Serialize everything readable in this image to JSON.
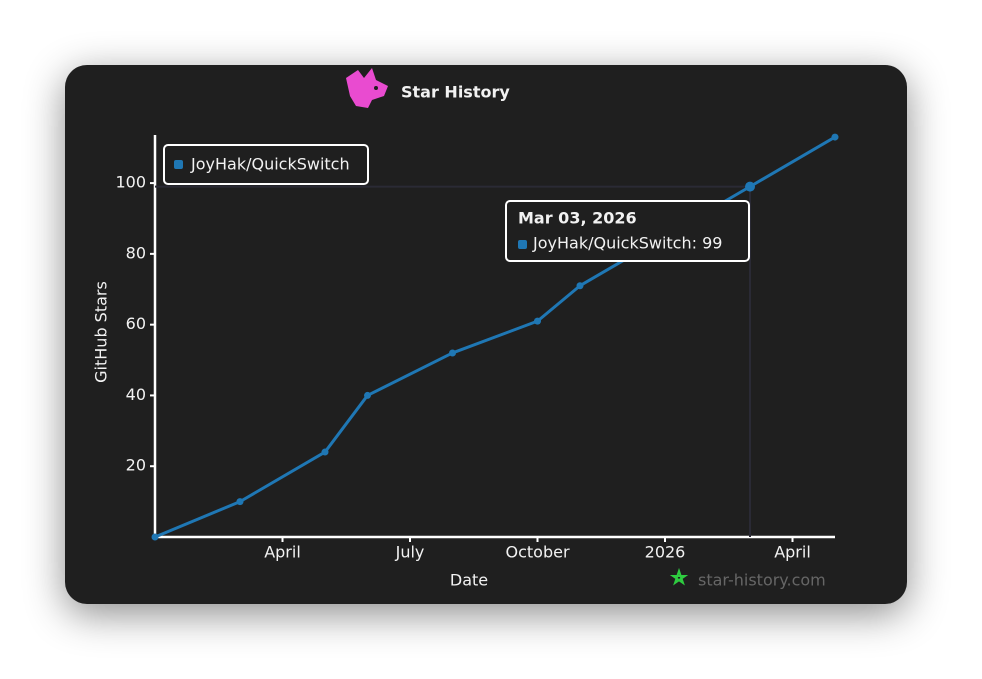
{
  "chart_data": {
    "type": "line",
    "title": "Star History",
    "x_label": "Date",
    "y_label": "GitHub Stars",
    "watermark": "star-history.com",
    "x": [
      "2025-01",
      "2025-03",
      "2025-05",
      "2025-06",
      "2025-08",
      "2025-10",
      "2025-11",
      "2026-03",
      "2026-05"
    ],
    "series": [
      {
        "name": "JoyHak/QuickSwitch",
        "color": "#1f77b4",
        "values": [
          0,
          10,
          24,
          40,
          52,
          61,
          71,
          99,
          113
        ]
      }
    ],
    "xlim": [
      "2025-01",
      "2026-05"
    ],
    "xticks": [
      {
        "value": "2025-04",
        "label": "April"
      },
      {
        "value": "2025-07",
        "label": "July"
      },
      {
        "value": "2025-10",
        "label": "October"
      },
      {
        "value": "2026-01",
        "label": "2026"
      },
      {
        "value": "2026-04",
        "label": "April"
      }
    ],
    "ylim": [
      0,
      115
    ],
    "yticks": [
      20,
      40,
      60,
      80,
      100
    ],
    "legend": "top-left",
    "tooltip": {
      "title": "Mar 03, 2026",
      "label": "JoyHak/QuickSwitch: 99",
      "index": 7
    }
  }
}
